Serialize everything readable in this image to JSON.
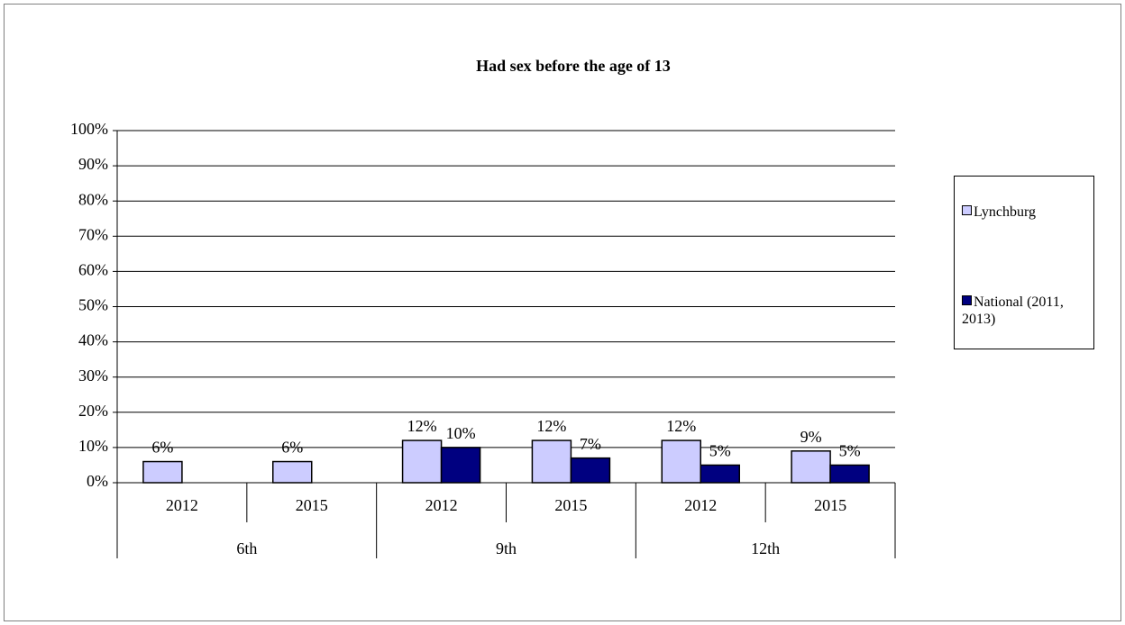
{
  "chart_data": {
    "type": "bar",
    "title": "Had sex before the age of 13",
    "categories": [
      "2012",
      "2015",
      "2012",
      "2015",
      "2012",
      "2015"
    ],
    "group_labels": [
      "6th",
      "9th",
      "12th"
    ],
    "series": [
      {
        "name": "Lynchburg",
        "color": "#ccccff",
        "values": [
          6,
          6,
          12,
          12,
          12,
          9
        ],
        "value_labels": [
          "6%",
          "6%",
          "12%",
          "12%",
          "12%",
          "9%"
        ]
      },
      {
        "name": "National (2011, 2013)",
        "color": "#000080",
        "values": [
          null,
          null,
          10,
          7,
          5,
          5
        ],
        "value_labels": [
          null,
          null,
          "10%",
          "7%",
          "5%",
          "5%"
        ]
      }
    ],
    "ylim": [
      0,
      100
    ],
    "yticks": [
      {
        "value": 0,
        "label": "0%"
      },
      {
        "value": 10,
        "label": "10%"
      },
      {
        "value": 20,
        "label": "20%"
      },
      {
        "value": 30,
        "label": "30%"
      },
      {
        "value": 40,
        "label": "40%"
      },
      {
        "value": 50,
        "label": "50%"
      },
      {
        "value": 60,
        "label": "60%"
      },
      {
        "value": 70,
        "label": "70%"
      },
      {
        "value": 80,
        "label": "80%"
      },
      {
        "value": 90,
        "label": "90%"
      },
      {
        "value": 100,
        "label": "100%"
      }
    ],
    "grid": true,
    "legend": "right"
  }
}
